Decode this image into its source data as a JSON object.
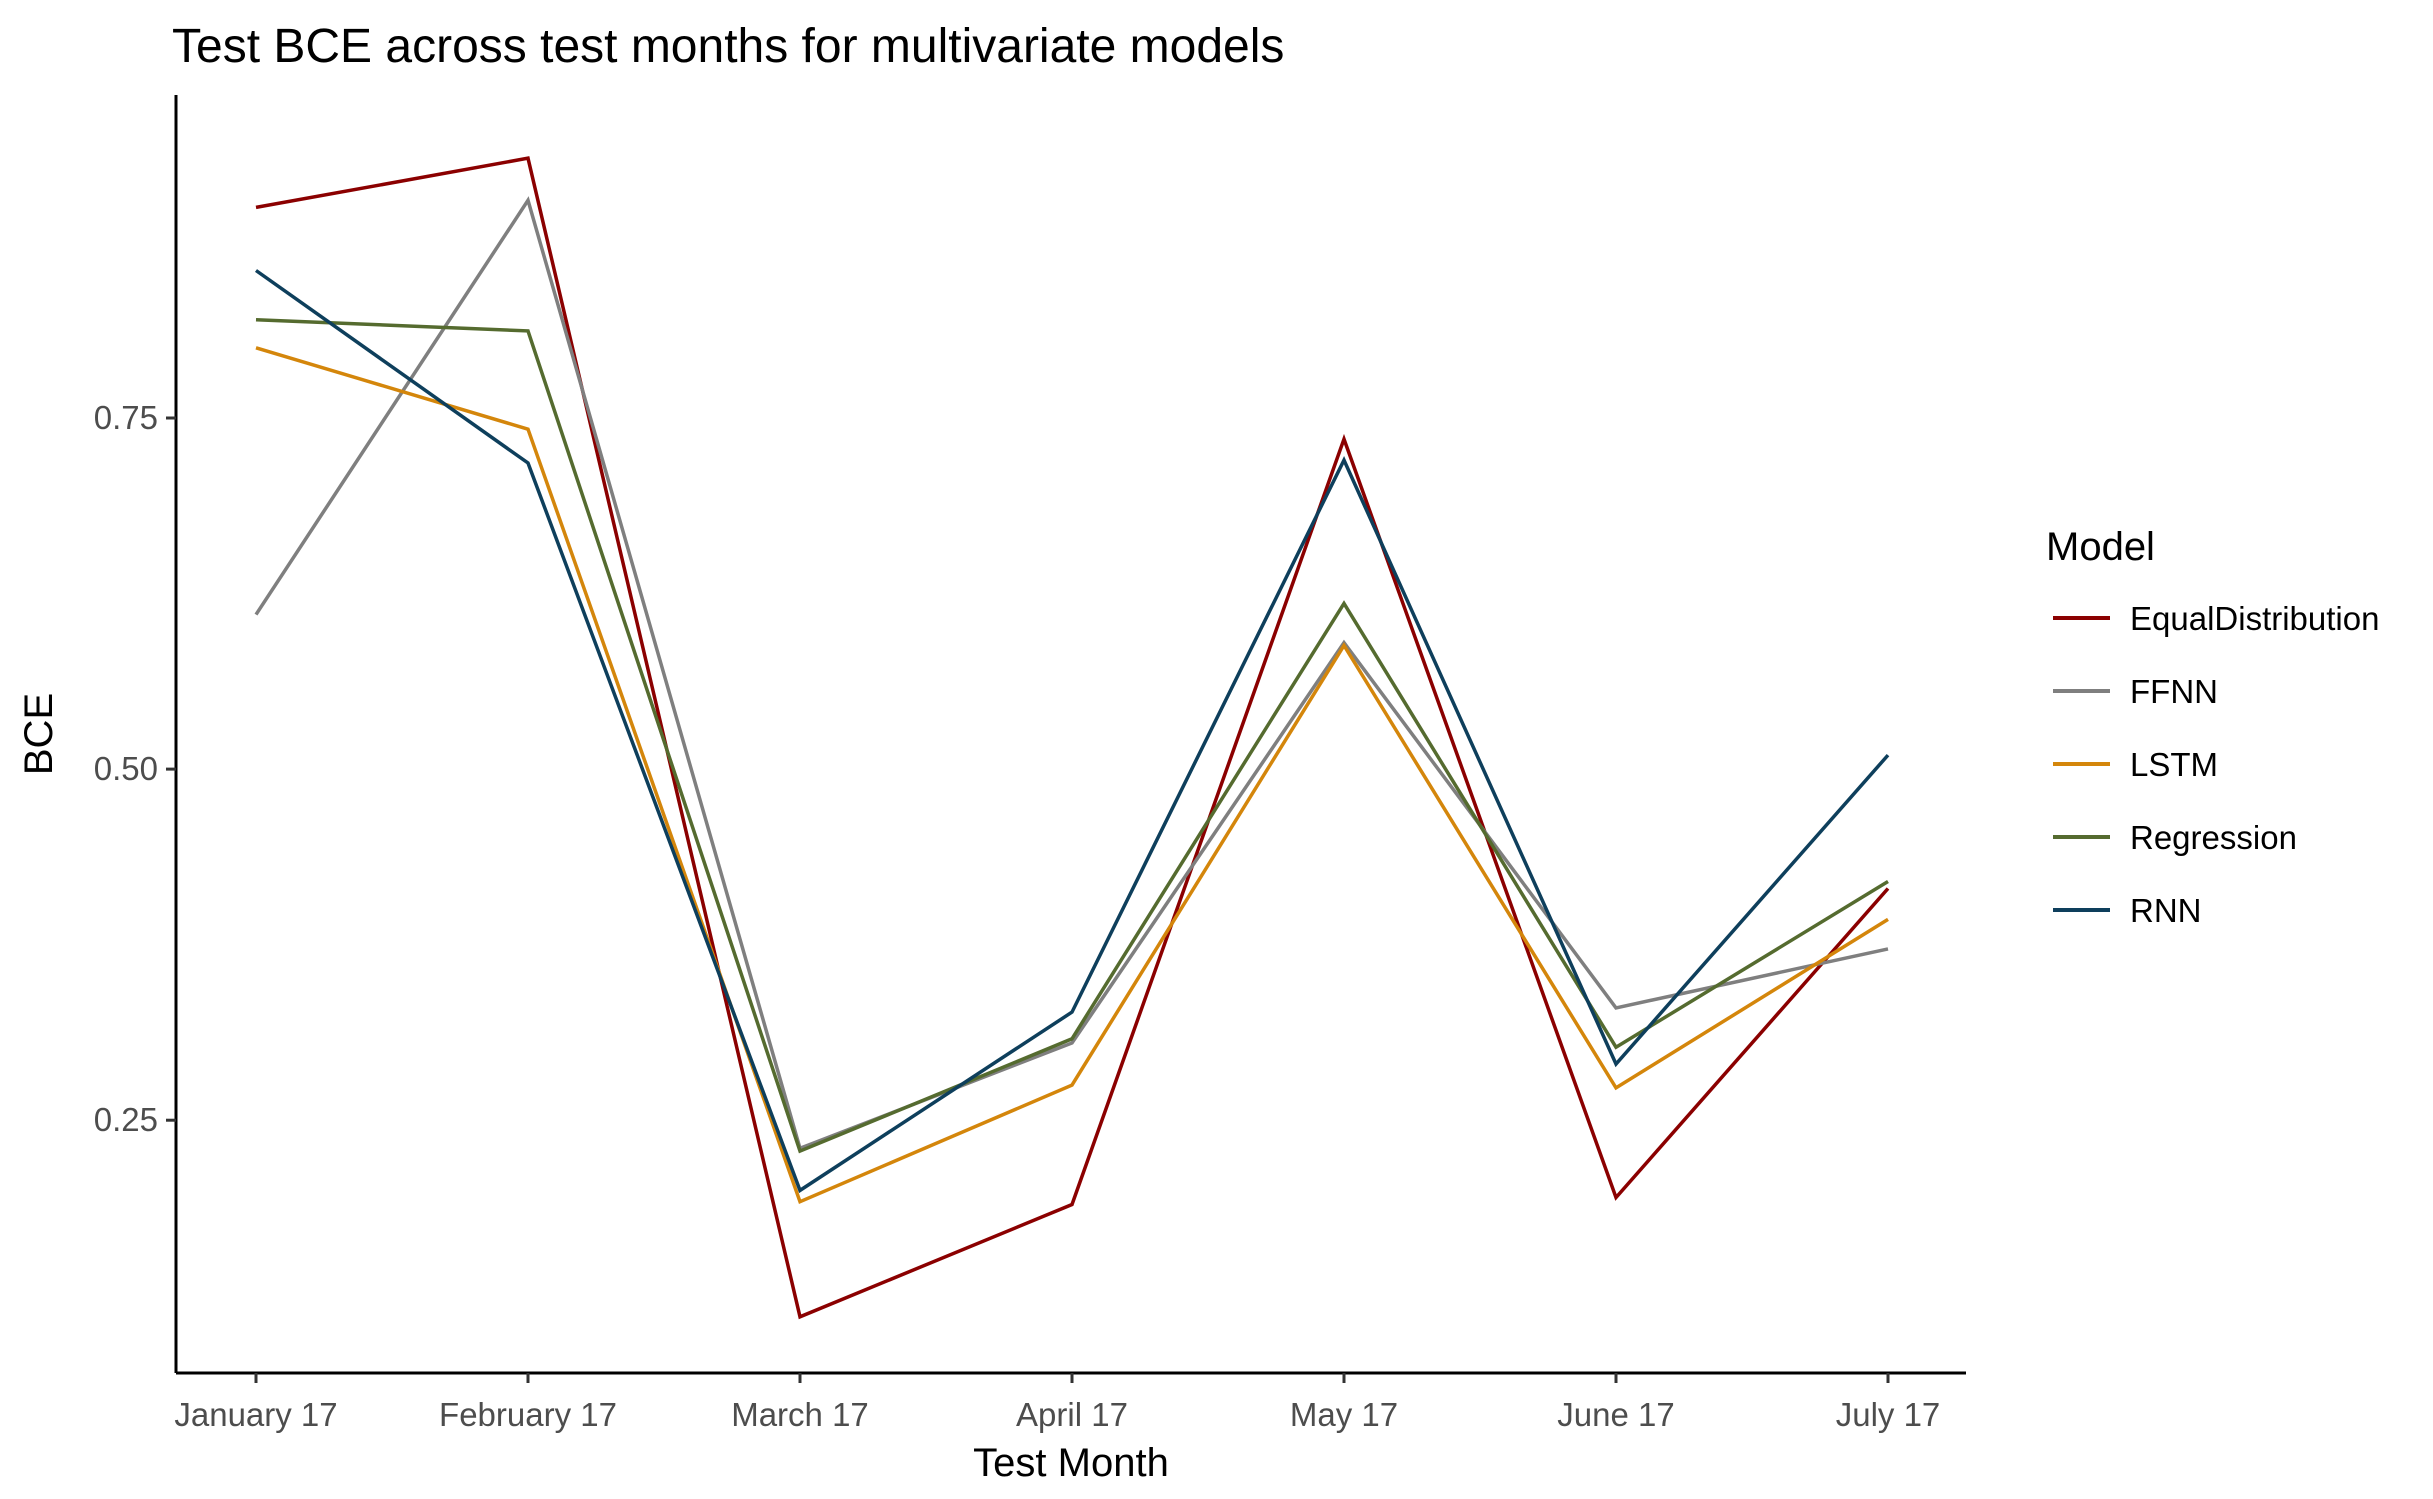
{
  "chart_data": {
    "type": "line",
    "title": "Test BCE across test months for multivariate models",
    "xlabel": "Test Month",
    "ylabel": "BCE",
    "categories": [
      "January 17",
      "February 17",
      "March 17",
      "April 17",
      "May 17",
      "June 17",
      "July 17"
    ],
    "ylim": [
      0.07,
      0.98
    ],
    "yticks": [
      0.25,
      0.5,
      0.75
    ],
    "ytick_labels": [
      "0.25",
      "0.50",
      "0.75"
    ],
    "grid": false,
    "legend": {
      "title": "Model",
      "placement": "right"
    },
    "series": [
      {
        "name": "EqualDistribution",
        "color": "#8B0000",
        "values": [
          0.9,
          0.935,
          0.11,
          0.19,
          0.735,
          0.195,
          0.415
        ]
      },
      {
        "name": "FFNN",
        "color": "#7F7F7F",
        "values": [
          0.61,
          0.905,
          0.23,
          0.305,
          0.59,
          0.33,
          0.372
        ]
      },
      {
        "name": "LSTM",
        "color": "#D4860B",
        "values": [
          0.8,
          0.742,
          0.192,
          0.275,
          0.588,
          0.273,
          0.393
        ]
      },
      {
        "name": "Regression",
        "color": "#556B2F",
        "values": [
          0.82,
          0.812,
          0.228,
          0.308,
          0.618,
          0.302,
          0.42
        ]
      },
      {
        "name": "RNN",
        "color": "#0E3F5C",
        "values": [
          0.855,
          0.718,
          0.2,
          0.327,
          0.72,
          0.29,
          0.51
        ]
      }
    ]
  }
}
